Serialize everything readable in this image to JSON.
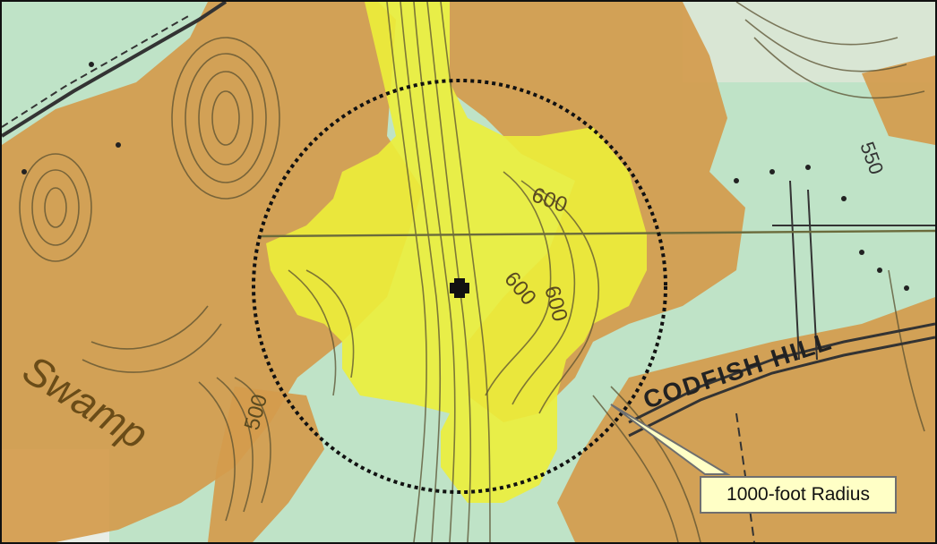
{
  "map": {
    "colors": {
      "background": "#bfe3c7",
      "orange_zone": "#d49b4c",
      "yellow_zone": "#ecee3a",
      "contour": "#5a5030",
      "road": "#333333",
      "radius_circle": "#111111",
      "center_marker": "#111111"
    },
    "labels": {
      "elev_600_a": "600",
      "elev_600_b": "600",
      "elev_600_c": "600",
      "elev_500": "500",
      "elev_550": "550",
      "road_name": "CODFISH HILL",
      "swamp": "Swamp"
    },
    "callout": {
      "text": "1000-foot Radius"
    }
  }
}
